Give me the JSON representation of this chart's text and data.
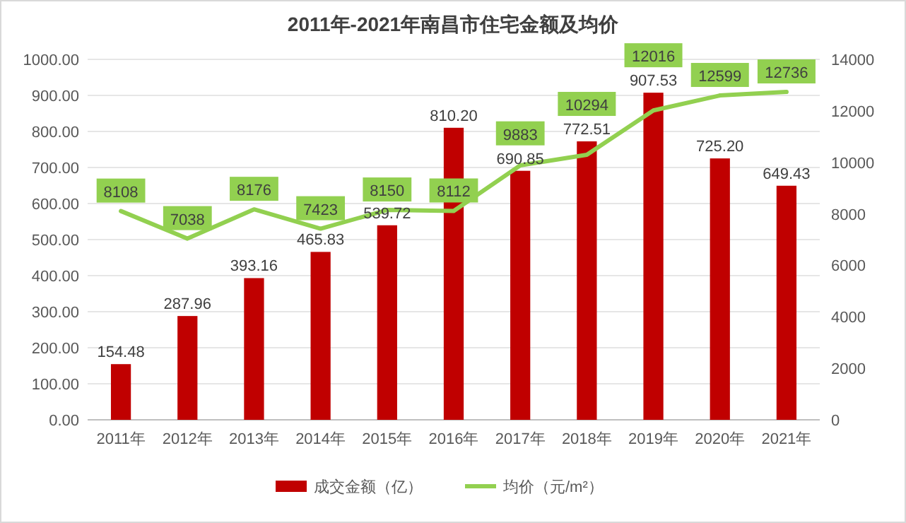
{
  "chart_data": {
    "type": "bar",
    "title": "2011年-2021年南昌市住宅金额及均价",
    "categories": [
      "2011年",
      "2012年",
      "2013年",
      "2014年",
      "2015年",
      "2016年",
      "2017年",
      "2018年",
      "2019年",
      "2020年",
      "2021年"
    ],
    "series": [
      {
        "name": "成交金额（亿）",
        "color": "#c00000",
        "values": [
          154.48,
          287.96,
          393.16,
          465.83,
          539.72,
          810.2,
          690.85,
          772.51,
          907.53,
          725.2,
          649.43
        ],
        "value_labels": [
          "154.48",
          "287.96",
          "393.16",
          "465.83",
          "539.72",
          "810.20",
          "690.85",
          "772.51",
          "907.53",
          "725.20",
          "649.43"
        ]
      },
      {
        "name": "均价（元/m²）",
        "type": "line",
        "axis": "y2",
        "color": "#92d050",
        "values": [
          8108,
          7038,
          8176,
          7423,
          8150,
          8112,
          9883,
          10294,
          12016,
          12599,
          12736
        ]
      }
    ],
    "ylim": [
      0,
      1000
    ],
    "yticks": [
      {
        "value": 0,
        "label": "0.00"
      },
      {
        "value": 100,
        "label": "100.00"
      },
      {
        "value": 200,
        "label": "200.00"
      },
      {
        "value": 300,
        "label": "300.00"
      },
      {
        "value": 400,
        "label": "400.00"
      },
      {
        "value": 500,
        "label": "500.00"
      },
      {
        "value": 600,
        "label": "600.00"
      },
      {
        "value": 700,
        "label": "700.00"
      },
      {
        "value": 800,
        "label": "800.00"
      },
      {
        "value": 900,
        "label": "900.00"
      },
      {
        "value": 1000,
        "label": "1000.00"
      }
    ],
    "y2lim": [
      0,
      14000
    ],
    "y2ticks": [
      0,
      2000,
      4000,
      6000,
      8000,
      10000,
      12000,
      14000
    ],
    "data_labels": true,
    "legend": "bottom",
    "grid": "y"
  }
}
